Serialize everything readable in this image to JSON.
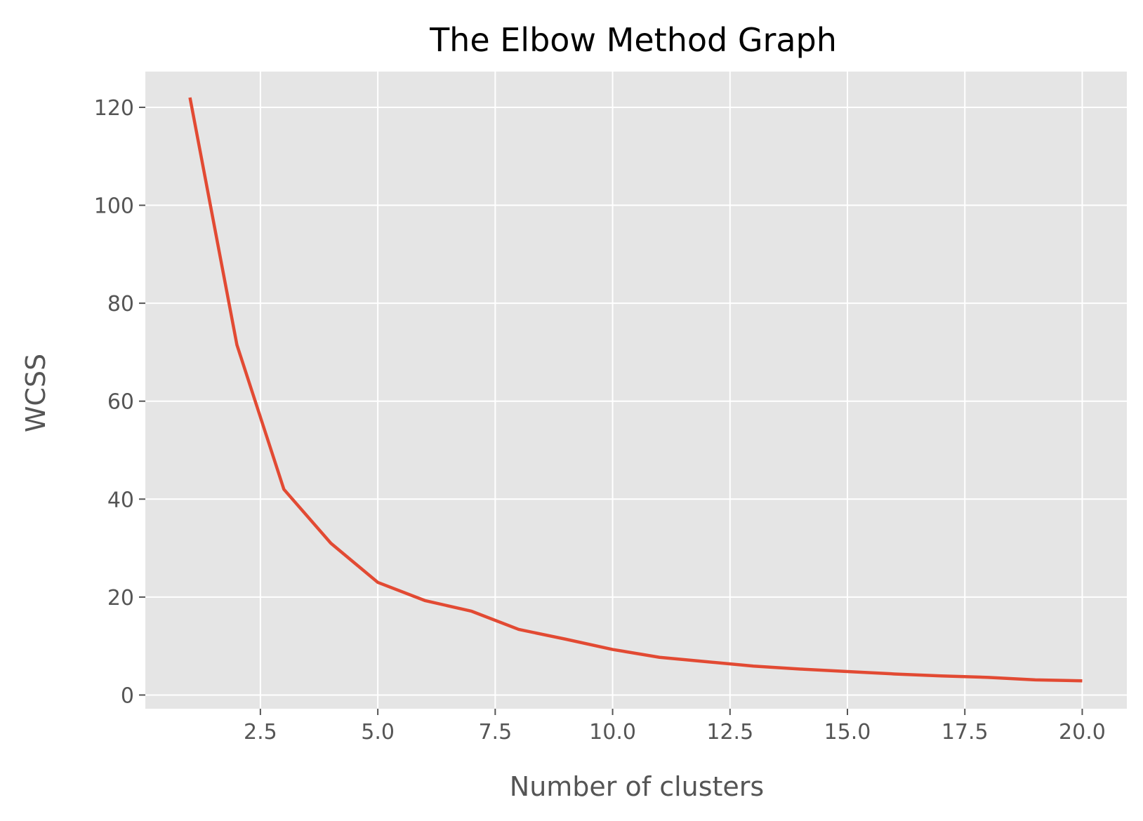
{
  "chart_data": {
    "type": "line",
    "title": "The Elbow Method Graph",
    "xlabel": "Number of clusters",
    "ylabel": "WCSS",
    "xlim": [
      0.05,
      20.95
    ],
    "ylim": [
      -2.8,
      127.3
    ],
    "grid": true,
    "legend": "none",
    "x_ticks": [
      2.5,
      5.0,
      7.5,
      10.0,
      12.5,
      15.0,
      17.5,
      20.0
    ],
    "x_tick_labels": [
      "2.5",
      "5.0",
      "7.5",
      "10.0",
      "12.5",
      "15.0",
      "17.5",
      "20.0"
    ],
    "y_ticks": [
      0,
      20,
      40,
      60,
      80,
      100,
      120
    ],
    "y_tick_labels": [
      "0",
      "20",
      "40",
      "60",
      "80",
      "100",
      "120"
    ],
    "series": [
      {
        "x": [
          1,
          2,
          3,
          4,
          5,
          6,
          7,
          8,
          9,
          10,
          11,
          12,
          13,
          14,
          15,
          16,
          17,
          18,
          19,
          20
        ],
        "values": [
          122,
          71.5,
          42,
          31,
          23,
          19.3,
          17.1,
          13.4,
          11.4,
          9.3,
          7.7,
          6.8,
          5.9,
          5.3,
          4.8,
          4.3,
          3.9,
          3.6,
          3.1,
          2.9
        ],
        "color": "#E24A33"
      }
    ],
    "colors": {
      "background": "#E5E5E5",
      "grid": "#FFFFFF",
      "tick": "#555555",
      "line": "#E24A33"
    }
  }
}
